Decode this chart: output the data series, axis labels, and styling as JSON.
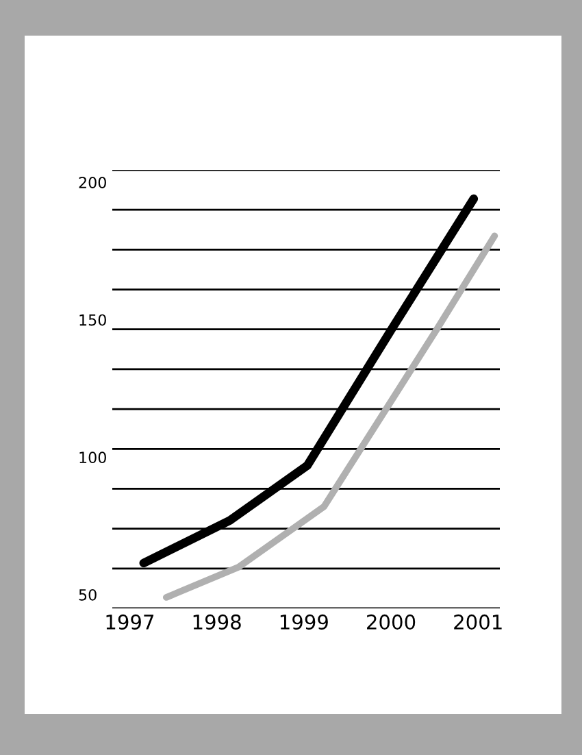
{
  "chart_data": {
    "type": "line",
    "series": [
      {
        "color": "#000000",
        "x": [
          1997.16,
          1998.15,
          1999.04,
          2000.01,
          2000.95
        ],
        "values": [
          61.5,
          77,
          97,
          146.7,
          194
        ]
      },
      {
        "color": "#b0b0b0",
        "x": [
          1997.42,
          1998.25,
          1999.23,
          1999.95,
          2000.53,
          2001.19
        ],
        "values": [
          49,
          60,
          82,
          117.8,
          146.7,
          180.5
        ]
      }
    ],
    "xlim": [
      1996.8,
      2001.25
    ],
    "xticks": [
      1997,
      1998,
      1999,
      2000,
      2001
    ],
    "ylim": [
      45,
      204.5
    ],
    "yticks": [
      50,
      100,
      150,
      200,
      {
        "value": 45,
        "label": null
      },
      {
        "value": 59.5,
        "label": null
      },
      {
        "value": 74,
        "label": null
      },
      {
        "value": 88.5,
        "label": null
      },
      {
        "value": 103,
        "label": null
      },
      {
        "value": 117.5,
        "label": null
      },
      {
        "value": 132,
        "label": null
      },
      {
        "value": 146.5,
        "label": null
      },
      {
        "value": 161,
        "label": null
      },
      {
        "value": 175.5,
        "label": null
      },
      {
        "value": 190,
        "label": null
      },
      {
        "value": 204.5,
        "label": null
      }
    ],
    "grid": "y",
    "marker": "none",
    "line_style": "solid",
    "legend": false
  }
}
